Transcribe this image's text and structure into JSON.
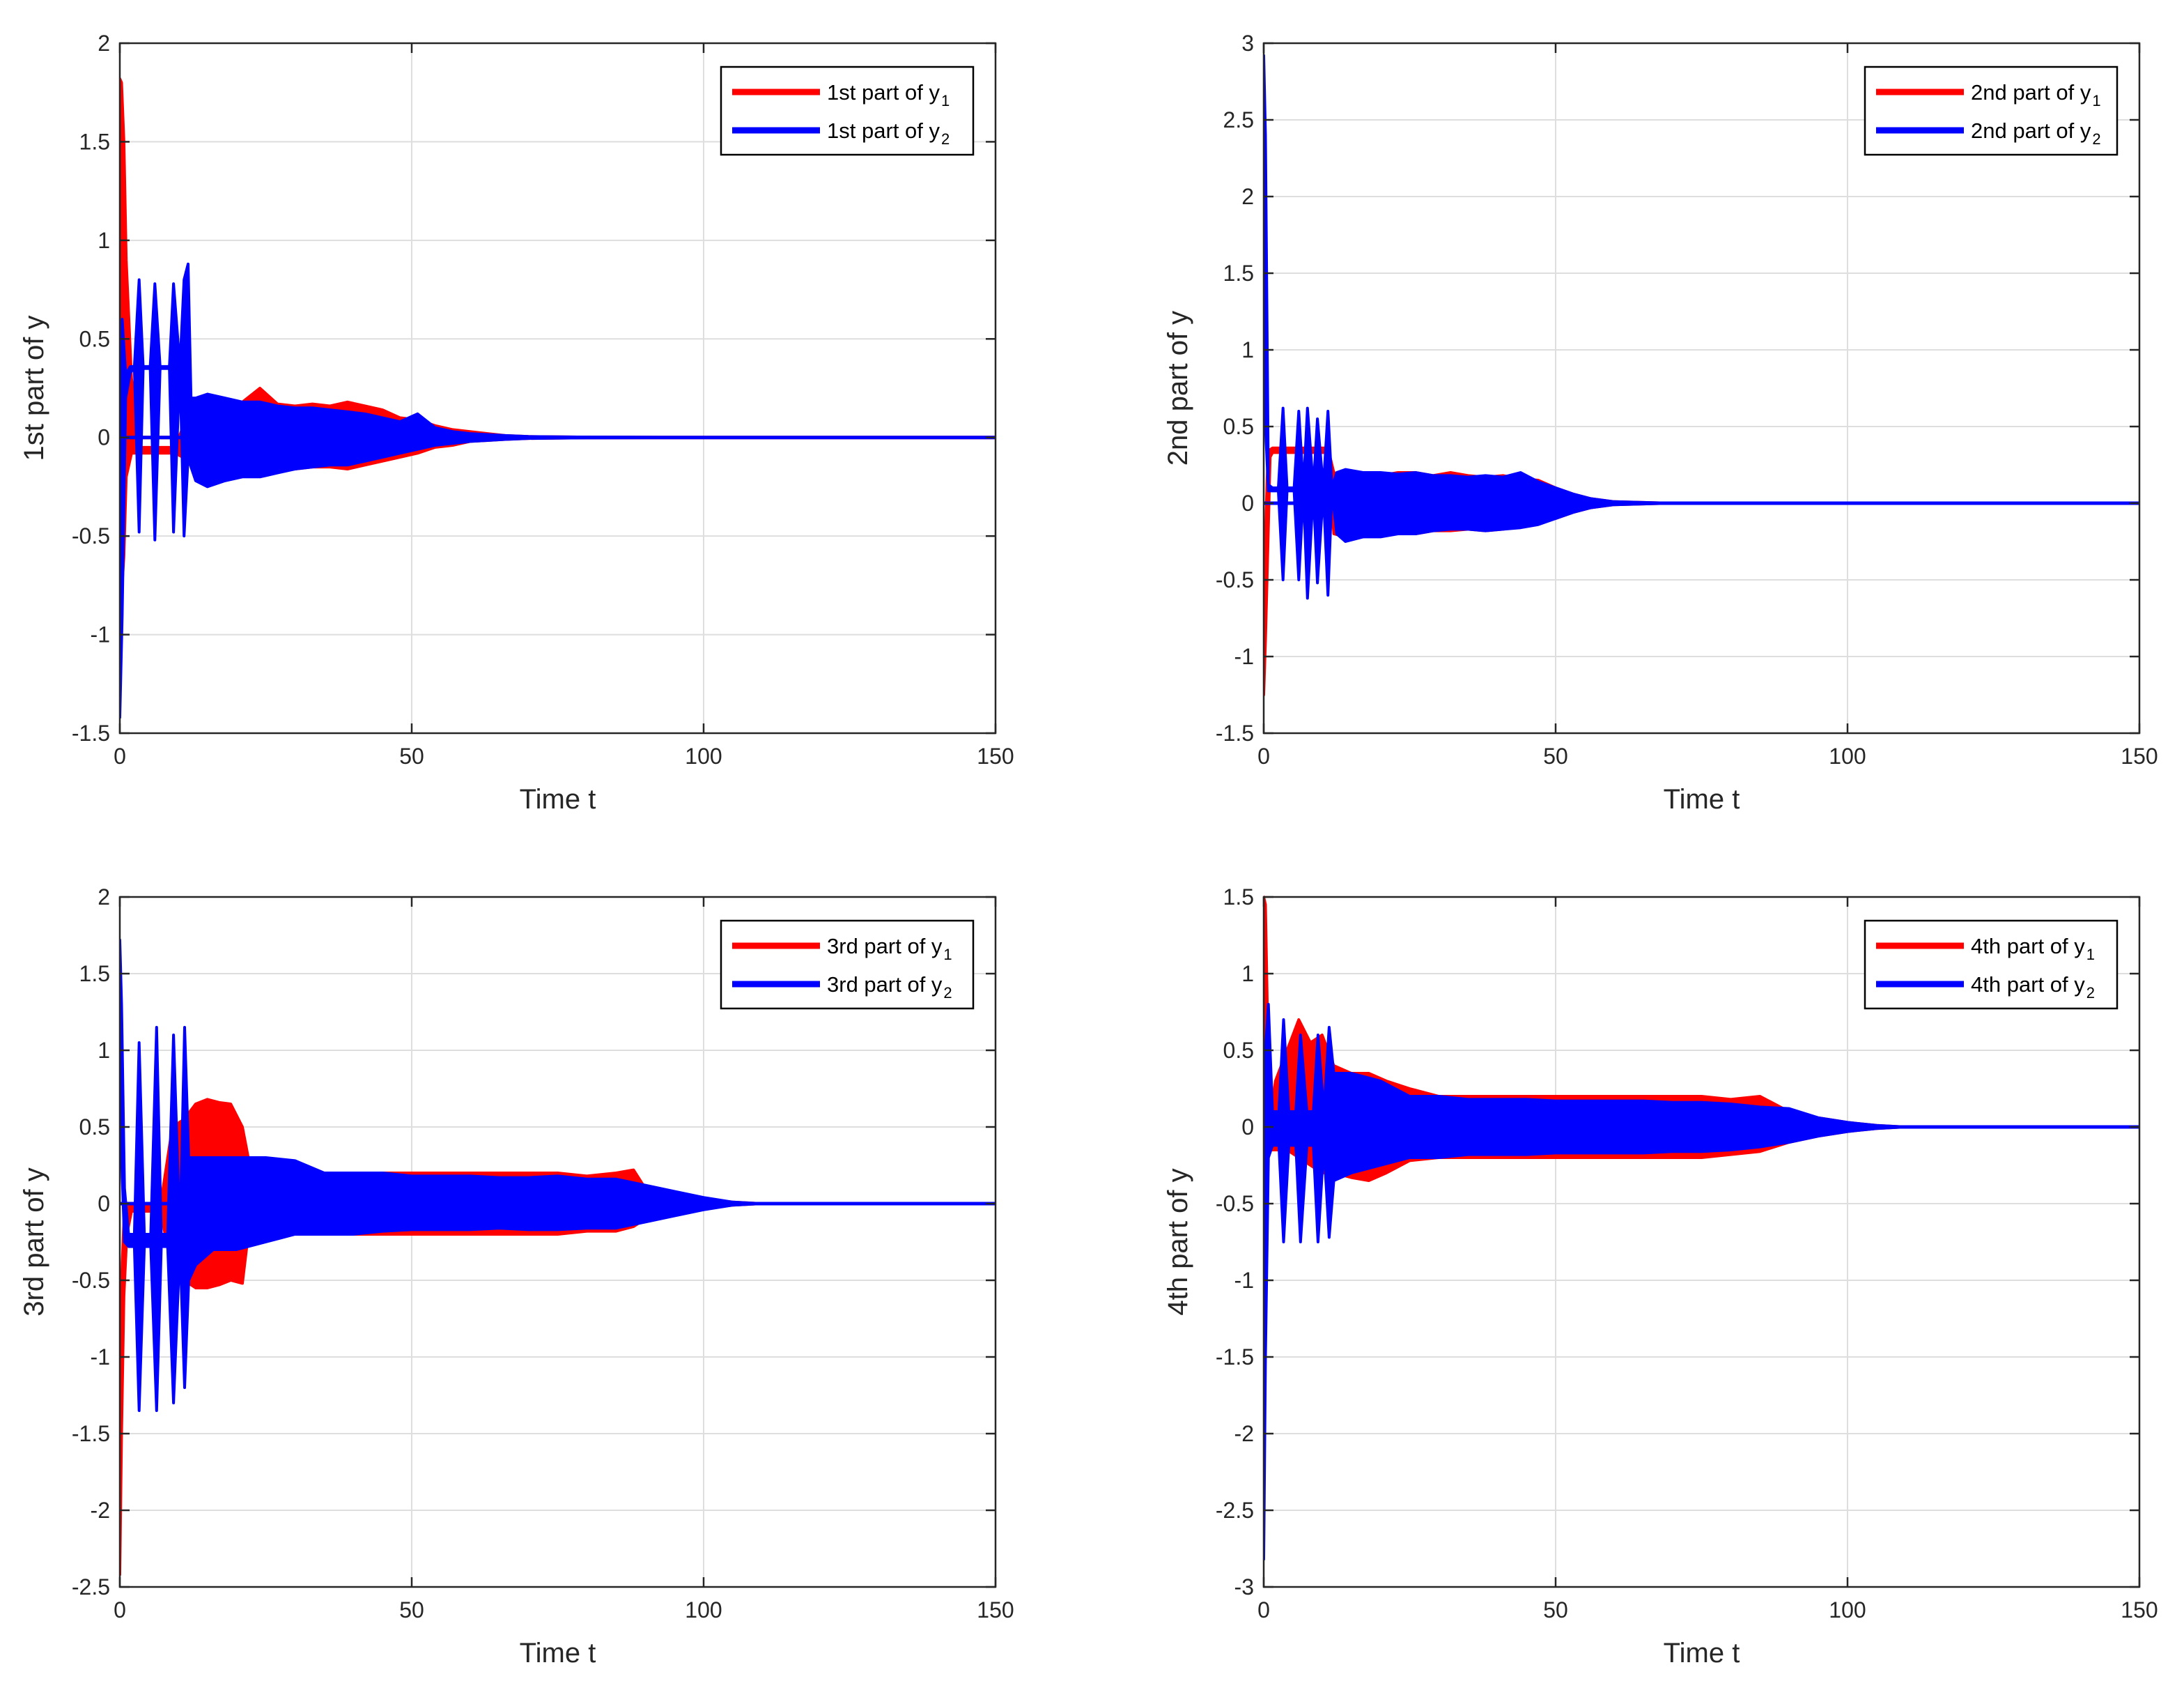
{
  "figure": {
    "background": "#ffffff",
    "grid_color": "#dedede",
    "axis_color": "#262626"
  },
  "chart_data": [
    {
      "type": "line",
      "title": "",
      "xlabel": "Time t",
      "ylabel": "1st part of y",
      "xlim": [
        0,
        150
      ],
      "ylim": [
        -1.5,
        2
      ],
      "xticks": [
        0,
        50,
        100,
        150
      ],
      "yticks": [
        -1.5,
        -1,
        -0.5,
        0,
        0.5,
        1,
        1.5,
        2
      ],
      "grid": true,
      "legend_position": "top-right",
      "series": [
        {
          "name": "1st part of y",
          "subscript": "1",
          "color": "#ff0000",
          "x": [
            0,
            0.3,
            0.7,
            1.1,
            2,
            3.5,
            5,
            7,
            9.5,
            12,
            15,
            18,
            21,
            24,
            27,
            30,
            33,
            36,
            39,
            42,
            45,
            48,
            51,
            54,
            57,
            60,
            63,
            66,
            70,
            80,
            100,
            150
          ],
          "lower": [
            0.35,
            -0.8,
            -0.6,
            -0.2,
            -0.08,
            -0.08,
            -0.08,
            -0.08,
            -0.08,
            -0.12,
            -0.16,
            -0.15,
            -0.16,
            -0.18,
            -0.17,
            -0.16,
            -0.15,
            -0.15,
            -0.16,
            -0.14,
            -0.12,
            -0.1,
            -0.08,
            -0.05,
            -0.04,
            -0.02,
            -0.015,
            -0.01,
            -0.005,
            -0.002,
            0,
            0
          ],
          "upper": [
            1.82,
            1.8,
            1.5,
            0.9,
            0.3,
            -0.05,
            -0.05,
            -0.05,
            -0.05,
            0.15,
            0.17,
            0.16,
            0.18,
            0.25,
            0.17,
            0.16,
            0.17,
            0.16,
            0.18,
            0.16,
            0.14,
            0.1,
            0.09,
            0.06,
            0.04,
            0.03,
            0.02,
            0.01,
            0.005,
            0.002,
            0,
            0
          ]
        },
        {
          "name": "1st part of y",
          "subscript": "2",
          "color": "#0000ff",
          "x": [
            0,
            0.4,
            1.0,
            1.8,
            2.5,
            3.3,
            4.0,
            5.2,
            6.0,
            6.9,
            7.6,
            8.5,
            9.2,
            10.3,
            11.0,
            11.7,
            12.2,
            13,
            15,
            18,
            21,
            24,
            27,
            30,
            33,
            36,
            39,
            42,
            45,
            48,
            51,
            54,
            57,
            60,
            63,
            66,
            70,
            80,
            100,
            150
          ],
          "lower": [
            -1.42,
            -0.9,
            0.2,
            0.33,
            0.35,
            -0.48,
            0.35,
            0.35,
            -0.52,
            0.35,
            0.35,
            0.35,
            -0.48,
            0.35,
            -0.5,
            -0.1,
            -0.15,
            -0.22,
            -0.25,
            -0.22,
            -0.2,
            -0.2,
            -0.18,
            -0.16,
            -0.15,
            -0.14,
            -0.14,
            -0.12,
            -0.1,
            -0.08,
            -0.06,
            -0.04,
            -0.03,
            -0.02,
            -0.015,
            -0.01,
            -0.005,
            -0.002,
            0,
            0
          ],
          "upper": [
            -1.2,
            0.6,
            0.32,
            0.36,
            0.36,
            0.8,
            0.36,
            0.36,
            0.78,
            0.36,
            0.36,
            0.36,
            0.78,
            0.36,
            0.8,
            0.88,
            0.2,
            0.2,
            0.22,
            0.2,
            0.18,
            0.18,
            0.16,
            0.15,
            0.15,
            0.14,
            0.13,
            0.12,
            0.1,
            0.08,
            0.12,
            0.05,
            0.03,
            0.02,
            0.015,
            0.01,
            0.005,
            0.002,
            0,
            0
          ]
        }
      ]
    },
    {
      "type": "line",
      "title": "",
      "xlabel": "Time t",
      "ylabel": "2nd part of y",
      "xlim": [
        0,
        150
      ],
      "ylim": [
        -1.5,
        3
      ],
      "xticks": [
        0,
        50,
        100,
        150
      ],
      "yticks": [
        -1.5,
        -1,
        -0.5,
        0,
        0.5,
        1,
        1.5,
        2,
        2.5,
        3
      ],
      "grid": true,
      "legend_position": "top-right",
      "series": [
        {
          "name": "2nd part of y",
          "subscript": "1",
          "color": "#ff0000",
          "x": [
            0,
            0.3,
            0.7,
            1.1,
            1.5,
            3,
            5,
            7,
            9,
            11,
            12,
            14,
            17,
            20,
            23,
            26,
            29,
            32,
            35,
            38,
            41,
            44,
            47,
            50,
            53,
            56,
            60,
            70,
            100,
            150
          ],
          "lower": [
            -1.25,
            -0.9,
            -0.3,
            0.3,
            0.33,
            0.33,
            0.33,
            0.33,
            0.33,
            0.33,
            -0.2,
            -0.22,
            -0.22,
            -0.2,
            -0.2,
            -0.2,
            -0.18,
            -0.18,
            -0.17,
            -0.18,
            -0.17,
            -0.15,
            -0.12,
            -0.1,
            -0.06,
            -0.03,
            -0.01,
            0,
            0,
            0
          ],
          "upper": [
            -1.0,
            -0.2,
            0.3,
            0.35,
            0.36,
            0.36,
            0.36,
            0.36,
            0.36,
            0.36,
            0.2,
            0.18,
            0.2,
            0.18,
            0.2,
            0.2,
            0.18,
            0.2,
            0.18,
            0.17,
            0.18,
            0.16,
            0.15,
            0.1,
            0.06,
            0.03,
            0.01,
            0,
            0,
            0
          ]
        },
        {
          "name": "2nd part of y",
          "subscript": "2",
          "color": "#0000ff",
          "x": [
            0,
            0.3,
            0.8,
            1.5,
            2.5,
            3.3,
            4.0,
            5.2,
            6.0,
            6.8,
            7.5,
            8.5,
            9.2,
            10.2,
            11.0,
            11.7,
            12.5,
            14,
            17,
            20,
            23,
            26,
            29,
            32,
            35,
            38,
            41,
            44,
            47,
            50,
            53,
            56,
            60,
            70,
            100,
            150
          ],
          "lower": [
            2.6,
            0.5,
            0.08,
            0.08,
            0.08,
            -0.5,
            0.08,
            0.08,
            -0.5,
            0.08,
            -0.62,
            0.08,
            -0.52,
            0.08,
            -0.6,
            0.08,
            -0.2,
            -0.25,
            -0.22,
            -0.22,
            -0.2,
            -0.2,
            -0.18,
            -0.17,
            -0.17,
            -0.18,
            -0.17,
            -0.16,
            -0.14,
            -0.1,
            -0.06,
            -0.03,
            -0.01,
            0,
            0,
            0
          ],
          "upper": [
            2.92,
            2.4,
            0.12,
            0.1,
            0.1,
            0.62,
            0.1,
            0.1,
            0.6,
            0.1,
            0.62,
            0.1,
            0.55,
            0.1,
            0.6,
            0.1,
            0.2,
            0.22,
            0.2,
            0.2,
            0.19,
            0.2,
            0.18,
            0.18,
            0.17,
            0.18,
            0.17,
            0.2,
            0.14,
            0.1,
            0.06,
            0.03,
            0.01,
            0,
            0,
            0
          ]
        }
      ]
    },
    {
      "type": "line",
      "title": "",
      "xlabel": "Time t",
      "ylabel": "3rd part of y",
      "xlim": [
        0,
        150
      ],
      "ylim": [
        -2.5,
        2
      ],
      "xticks": [
        0,
        50,
        100,
        150
      ],
      "yticks": [
        -2.5,
        -2,
        -1.5,
        -1,
        -0.5,
        0,
        0.5,
        1,
        1.5,
        2
      ],
      "grid": true,
      "legend_position": "top-right",
      "series": [
        {
          "name": "3rd part of y",
          "subscript": "1",
          "color": "#ff0000",
          "x": [
            0,
            0.3,
            0.7,
            1.2,
            2,
            4,
            7,
            9,
            11,
            13,
            15,
            17,
            19,
            21,
            22,
            25,
            30,
            35,
            40,
            45,
            50,
            55,
            60,
            65,
            70,
            75,
            80,
            85,
            88,
            90,
            95,
            100,
            105,
            110,
            150
          ],
          "lower": [
            -2.42,
            -1.5,
            -0.6,
            -0.2,
            -0.05,
            -0.05,
            -0.05,
            -0.45,
            -0.5,
            -0.55,
            -0.55,
            -0.53,
            -0.5,
            -0.52,
            -0.2,
            -0.2,
            -0.2,
            -0.2,
            -0.2,
            -0.2,
            -0.2,
            -0.2,
            -0.2,
            -0.2,
            -0.2,
            -0.2,
            -0.18,
            -0.18,
            -0.15,
            -0.1,
            -0.06,
            -0.03,
            -0.01,
            0,
            0
          ],
          "upper": [
            -2.2,
            -0.5,
            -0.1,
            0.0,
            0.0,
            0.0,
            0.0,
            0.5,
            0.55,
            0.65,
            0.68,
            0.66,
            0.65,
            0.5,
            0.3,
            0.25,
            0.2,
            0.2,
            0.2,
            0.2,
            0.2,
            0.2,
            0.2,
            0.2,
            0.2,
            0.2,
            0.18,
            0.2,
            0.22,
            0.1,
            0.06,
            0.03,
            0.01,
            0,
            0
          ]
        },
        {
          "name": "3rd part of y",
          "subscript": "2",
          "color": "#0000ff",
          "x": [
            0,
            0.3,
            0.8,
            1.5,
            2.5,
            3.3,
            4.2,
            5.3,
            6.3,
            7.1,
            8.2,
            9.2,
            10.3,
            11.1,
            11.8,
            13,
            16,
            20,
            25,
            30,
            35,
            40,
            45,
            50,
            55,
            60,
            65,
            70,
            75,
            80,
            85,
            90,
            95,
            100,
            105,
            110,
            150
          ],
          "lower": [
            1.5,
            0.3,
            -0.25,
            -0.28,
            -0.28,
            -1.35,
            -0.28,
            -0.28,
            -1.35,
            -0.28,
            -0.28,
            -1.3,
            -0.28,
            -1.2,
            -0.5,
            -0.4,
            -0.3,
            -0.3,
            -0.25,
            -0.2,
            -0.2,
            -0.2,
            -0.18,
            -0.17,
            -0.17,
            -0.17,
            -0.16,
            -0.17,
            -0.17,
            -0.16,
            -0.16,
            -0.12,
            -0.08,
            -0.04,
            -0.01,
            0,
            0
          ],
          "upper": [
            1.72,
            1.3,
            0.1,
            -0.2,
            -0.2,
            1.05,
            -0.2,
            -0.2,
            1.15,
            -0.2,
            -0.2,
            1.1,
            -0.2,
            1.15,
            0.3,
            0.3,
            0.3,
            0.3,
            0.3,
            0.28,
            0.2,
            0.2,
            0.2,
            0.18,
            0.18,
            0.18,
            0.17,
            0.17,
            0.18,
            0.16,
            0.16,
            0.12,
            0.08,
            0.04,
            0.01,
            0,
            0
          ]
        }
      ]
    },
    {
      "type": "line",
      "title": "",
      "xlabel": "Time t",
      "ylabel": "4th part of y",
      "xlim": [
        0,
        150
      ],
      "ylim": [
        -3,
        1.5
      ],
      "xticks": [
        0,
        50,
        100,
        150
      ],
      "yticks": [
        -3,
        -2.5,
        -2,
        -1.5,
        -1,
        -0.5,
        0,
        0.5,
        1,
        1.5
      ],
      "grid": true,
      "legend_position": "top-right",
      "series": [
        {
          "name": "4th part of y",
          "subscript": "1",
          "color": "#ff0000",
          "x": [
            0,
            0.3,
            0.7,
            1.2,
            2,
            4,
            6,
            8,
            10,
            12,
            15,
            18,
            21,
            25,
            30,
            35,
            40,
            45,
            50,
            55,
            60,
            65,
            70,
            75,
            80,
            85,
            90,
            95,
            100,
            105,
            110,
            150
          ],
          "lower": [
            1.2,
            0.5,
            -0.1,
            -0.15,
            -0.15,
            -0.15,
            -0.2,
            -0.25,
            -0.3,
            -0.3,
            -0.33,
            -0.35,
            -0.3,
            -0.22,
            -0.2,
            -0.2,
            -0.2,
            -0.2,
            -0.2,
            -0.2,
            -0.2,
            -0.2,
            -0.2,
            -0.2,
            -0.18,
            -0.16,
            -0.1,
            -0.06,
            -0.03,
            -0.01,
            0,
            0
          ],
          "upper": [
            1.5,
            1.45,
            0.6,
            0.1,
            0.3,
            0.5,
            0.7,
            0.55,
            0.6,
            0.4,
            0.35,
            0.35,
            0.3,
            0.25,
            0.2,
            0.2,
            0.2,
            0.2,
            0.2,
            0.2,
            0.2,
            0.2,
            0.2,
            0.2,
            0.18,
            0.2,
            0.1,
            0.06,
            0.03,
            0.01,
            0,
            0
          ]
        },
        {
          "name": "4th part of y",
          "subscript": "2",
          "color": "#0000ff",
          "x": [
            0,
            0.3,
            0.8,
            1.5,
            2.6,
            3.4,
            4.3,
            5.5,
            6.3,
            7.4,
            8.5,
            9.3,
            10.3,
            11.2,
            12,
            15,
            20,
            25,
            30,
            35,
            40,
            45,
            50,
            55,
            60,
            65,
            70,
            75,
            80,
            85,
            90,
            95,
            100,
            105,
            110,
            150
          ],
          "lower": [
            -2.82,
            -1.5,
            -0.2,
            -0.12,
            -0.12,
            -0.75,
            -0.12,
            -0.12,
            -0.75,
            -0.12,
            -0.12,
            -0.75,
            -0.12,
            -0.72,
            -0.35,
            -0.3,
            -0.25,
            -0.2,
            -0.2,
            -0.18,
            -0.18,
            -0.18,
            -0.17,
            -0.17,
            -0.17,
            -0.17,
            -0.16,
            -0.16,
            -0.15,
            -0.13,
            -0.1,
            -0.06,
            -0.03,
            -0.01,
            0,
            0
          ],
          "upper": [
            -2.5,
            0.5,
            0.8,
            0.1,
            0.1,
            0.7,
            0.1,
            0.1,
            0.6,
            0.1,
            0.1,
            0.6,
            0.1,
            0.65,
            0.35,
            0.35,
            0.3,
            0.2,
            0.2,
            0.18,
            0.18,
            0.18,
            0.17,
            0.17,
            0.17,
            0.17,
            0.16,
            0.16,
            0.15,
            0.13,
            0.12,
            0.06,
            0.03,
            0.01,
            0,
            0
          ]
        }
      ]
    }
  ]
}
